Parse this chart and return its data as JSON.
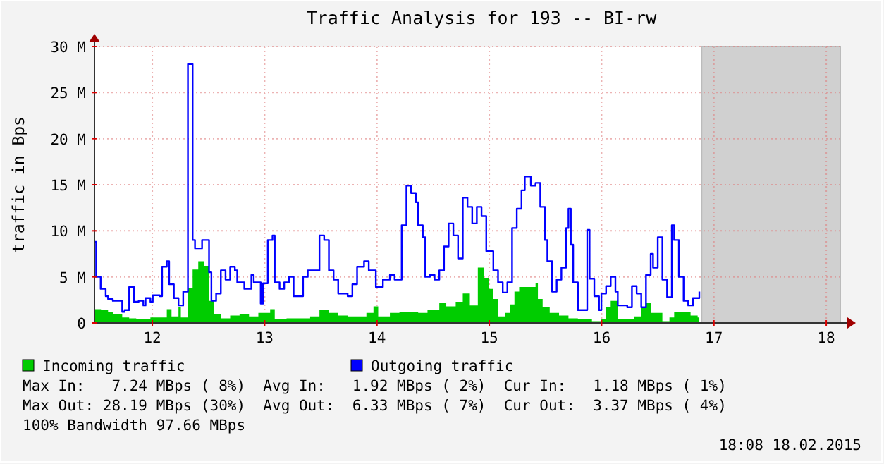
{
  "chart_data": {
    "type": "area",
    "title": "Traffic Analysis for 193 -- BI-rw",
    "ylabel": "traffic in Bps",
    "xlim": [
      11.485,
      18.125
    ],
    "xticks": [
      12,
      13,
      14,
      15,
      16,
      17,
      18
    ],
    "ylim": [
      0,
      30
    ],
    "yticks": [
      0,
      {
        "value": 5,
        "label": "5 M"
      },
      {
        "value": 10,
        "label": "10 M"
      },
      {
        "value": 15,
        "label": "15 M"
      },
      {
        "value": 20,
        "label": "20 M"
      },
      {
        "value": 25,
        "label": "25 M"
      },
      {
        "value": 30,
        "label": "30 M"
      }
    ],
    "grid": true,
    "legend": "bottom",
    "line_style": "solid",
    "bands": [
      {
        "axis": "x",
        "from": 16.89,
        "to": 18.125,
        "color": "#d0d0d0"
      }
    ],
    "series": [
      {
        "name": "Incoming traffic",
        "color": "#00cc00",
        "x": [
          11.485,
          11.543,
          11.606,
          11.648,
          11.732,
          11.794,
          11.857,
          11.983,
          12.129,
          12.171,
          12.233,
          12.254,
          12.317,
          12.359,
          12.409,
          12.463,
          12.505,
          12.547,
          12.61,
          12.693,
          12.777,
          12.861,
          12.944,
          13.049,
          13.09,
          13.195,
          13.32,
          13.405,
          13.488,
          13.572,
          13.655,
          13.739,
          13.906,
          13.969,
          14.011,
          14.115,
          14.2,
          14.367,
          14.45,
          14.555,
          14.617,
          14.701,
          14.764,
          14.827,
          14.898,
          14.952,
          14.994,
          15.036,
          15.078,
          15.14,
          15.182,
          15.224,
          15.266,
          15.412,
          15.433,
          15.475,
          15.538,
          15.621,
          15.705,
          15.789,
          15.914,
          15.998,
          16.04,
          16.081,
          16.144,
          16.228,
          16.291,
          16.353,
          16.395,
          16.437,
          16.541,
          16.604,
          16.646,
          16.792,
          16.855,
          16.87
        ],
        "values": [
          1.5,
          1.4,
          1.2,
          1.0,
          0.6,
          0.5,
          0.4,
          0.6,
          1.5,
          0.7,
          1.7,
          0.6,
          3.8,
          5.8,
          6.7,
          6.2,
          2.4,
          1.0,
          0.5,
          0.8,
          1.0,
          0.7,
          1.1,
          1.5,
          0.4,
          0.5,
          0.5,
          0.7,
          1.4,
          1.1,
          0.8,
          0.7,
          1.1,
          1.8,
          0.7,
          1.1,
          1.2,
          1.1,
          1.4,
          2.2,
          1.8,
          2.3,
          3.2,
          1.9,
          6.0,
          4.9,
          3.7,
          2.6,
          0.7,
          1.1,
          2.0,
          3.4,
          3.9,
          4.3,
          2.6,
          1.7,
          1.1,
          0.8,
          0.5,
          0.4,
          0.2,
          0.4,
          1.7,
          2.4,
          0.4,
          0.4,
          0.7,
          1.7,
          2.2,
          1.1,
          0.2,
          0.6,
          1.2,
          0.8,
          0.6,
          0.6
        ]
      },
      {
        "name": "Outgoing traffic",
        "type": "step",
        "color": "#0000ff",
        "x": [
          11.485,
          11.5,
          11.54,
          11.585,
          11.606,
          11.648,
          11.732,
          11.753,
          11.794,
          11.836,
          11.878,
          11.92,
          11.94,
          11.983,
          12.004,
          12.066,
          12.087,
          12.129,
          12.15,
          12.192,
          12.233,
          12.275,
          12.317,
          12.359,
          12.38,
          12.443,
          12.505,
          12.526,
          12.568,
          12.61,
          12.652,
          12.693,
          12.735,
          12.756,
          12.819,
          12.882,
          12.903,
          12.965,
          12.986,
          13.028,
          13.07,
          13.09,
          13.133,
          13.174,
          13.216,
          13.258,
          13.342,
          13.384,
          13.467,
          13.488,
          13.53,
          13.572,
          13.614,
          13.655,
          13.739,
          13.781,
          13.823,
          13.885,
          13.927,
          13.99,
          14.053,
          14.115,
          14.157,
          14.22,
          14.262,
          14.304,
          14.346,
          14.367,
          14.408,
          14.43,
          14.471,
          14.513,
          14.555,
          14.597,
          14.638,
          14.68,
          14.722,
          14.764,
          14.806,
          14.848,
          14.889,
          14.931,
          14.973,
          15.036,
          15.078,
          15.12,
          15.161,
          15.203,
          15.245,
          15.287,
          15.316,
          15.37,
          15.412,
          15.454,
          15.496,
          15.517,
          15.559,
          15.6,
          15.642,
          15.684,
          15.705,
          15.726,
          15.747,
          15.789,
          15.872,
          15.893,
          15.935,
          15.977,
          15.998,
          16.04,
          16.081,
          16.123,
          16.144,
          16.228,
          16.27,
          16.312,
          16.353,
          16.395,
          16.437,
          16.458,
          16.5,
          16.541,
          16.583,
          16.625,
          16.646,
          16.688,
          16.73,
          16.771,
          16.813,
          16.87
        ],
        "values": [
          8.8,
          5.0,
          3.7,
          2.9,
          2.6,
          2.4,
          1.2,
          1.4,
          3.9,
          2.3,
          2.4,
          1.9,
          2.7,
          2.3,
          3.0,
          2.9,
          6.1,
          6.7,
          4.2,
          2.7,
          1.9,
          3.4,
          28.1,
          9.0,
          8.1,
          9.0,
          5.5,
          2.4,
          3.2,
          5.7,
          4.7,
          6.1,
          5.7,
          4.4,
          3.7,
          5.2,
          4.4,
          2.1,
          4.3,
          9.0,
          9.5,
          4.4,
          3.7,
          4.4,
          5.0,
          2.9,
          5.0,
          5.7,
          5.7,
          9.5,
          9.0,
          5.7,
          4.7,
          3.2,
          2.9,
          4.2,
          6.1,
          6.7,
          5.7,
          3.9,
          4.7,
          5.2,
          4.7,
          10.6,
          14.9,
          14.1,
          13.1,
          10.6,
          9.3,
          5.0,
          5.2,
          4.7,
          5.7,
          8.3,
          10.8,
          9.5,
          7.0,
          13.6,
          12.6,
          10.8,
          12.6,
          11.6,
          7.8,
          5.7,
          4.4,
          3.3,
          4.4,
          10.3,
          12.4,
          14.4,
          15.9,
          14.9,
          15.2,
          12.6,
          9.0,
          6.7,
          3.4,
          4.7,
          6.0,
          10.3,
          12.4,
          8.5,
          4.4,
          1.4,
          10.1,
          4.8,
          2.9,
          1.4,
          3.2,
          4.0,
          5.0,
          3.4,
          1.9,
          1.7,
          4.0,
          3.2,
          1.7,
          5.2,
          7.5,
          6.0,
          9.3,
          4.7,
          2.8,
          10.6,
          9.0,
          5.0,
          2.4,
          1.9,
          2.7,
          3.4
        ]
      }
    ],
    "annotations": [
      "Max In:   7.24 MBps ( 8%)  Avg In:   1.92 MBps ( 2%)  Cur In:   1.18 MBps ( 1%)",
      "Max Out: 28.19 MBps (30%)  Avg Out:  6.33 MBps ( 7%)  Cur Out:  3.37 MBps ( 4%)",
      "100% Bandwidth 97.66 MBps",
      "18:08 18.02.2015"
    ]
  }
}
